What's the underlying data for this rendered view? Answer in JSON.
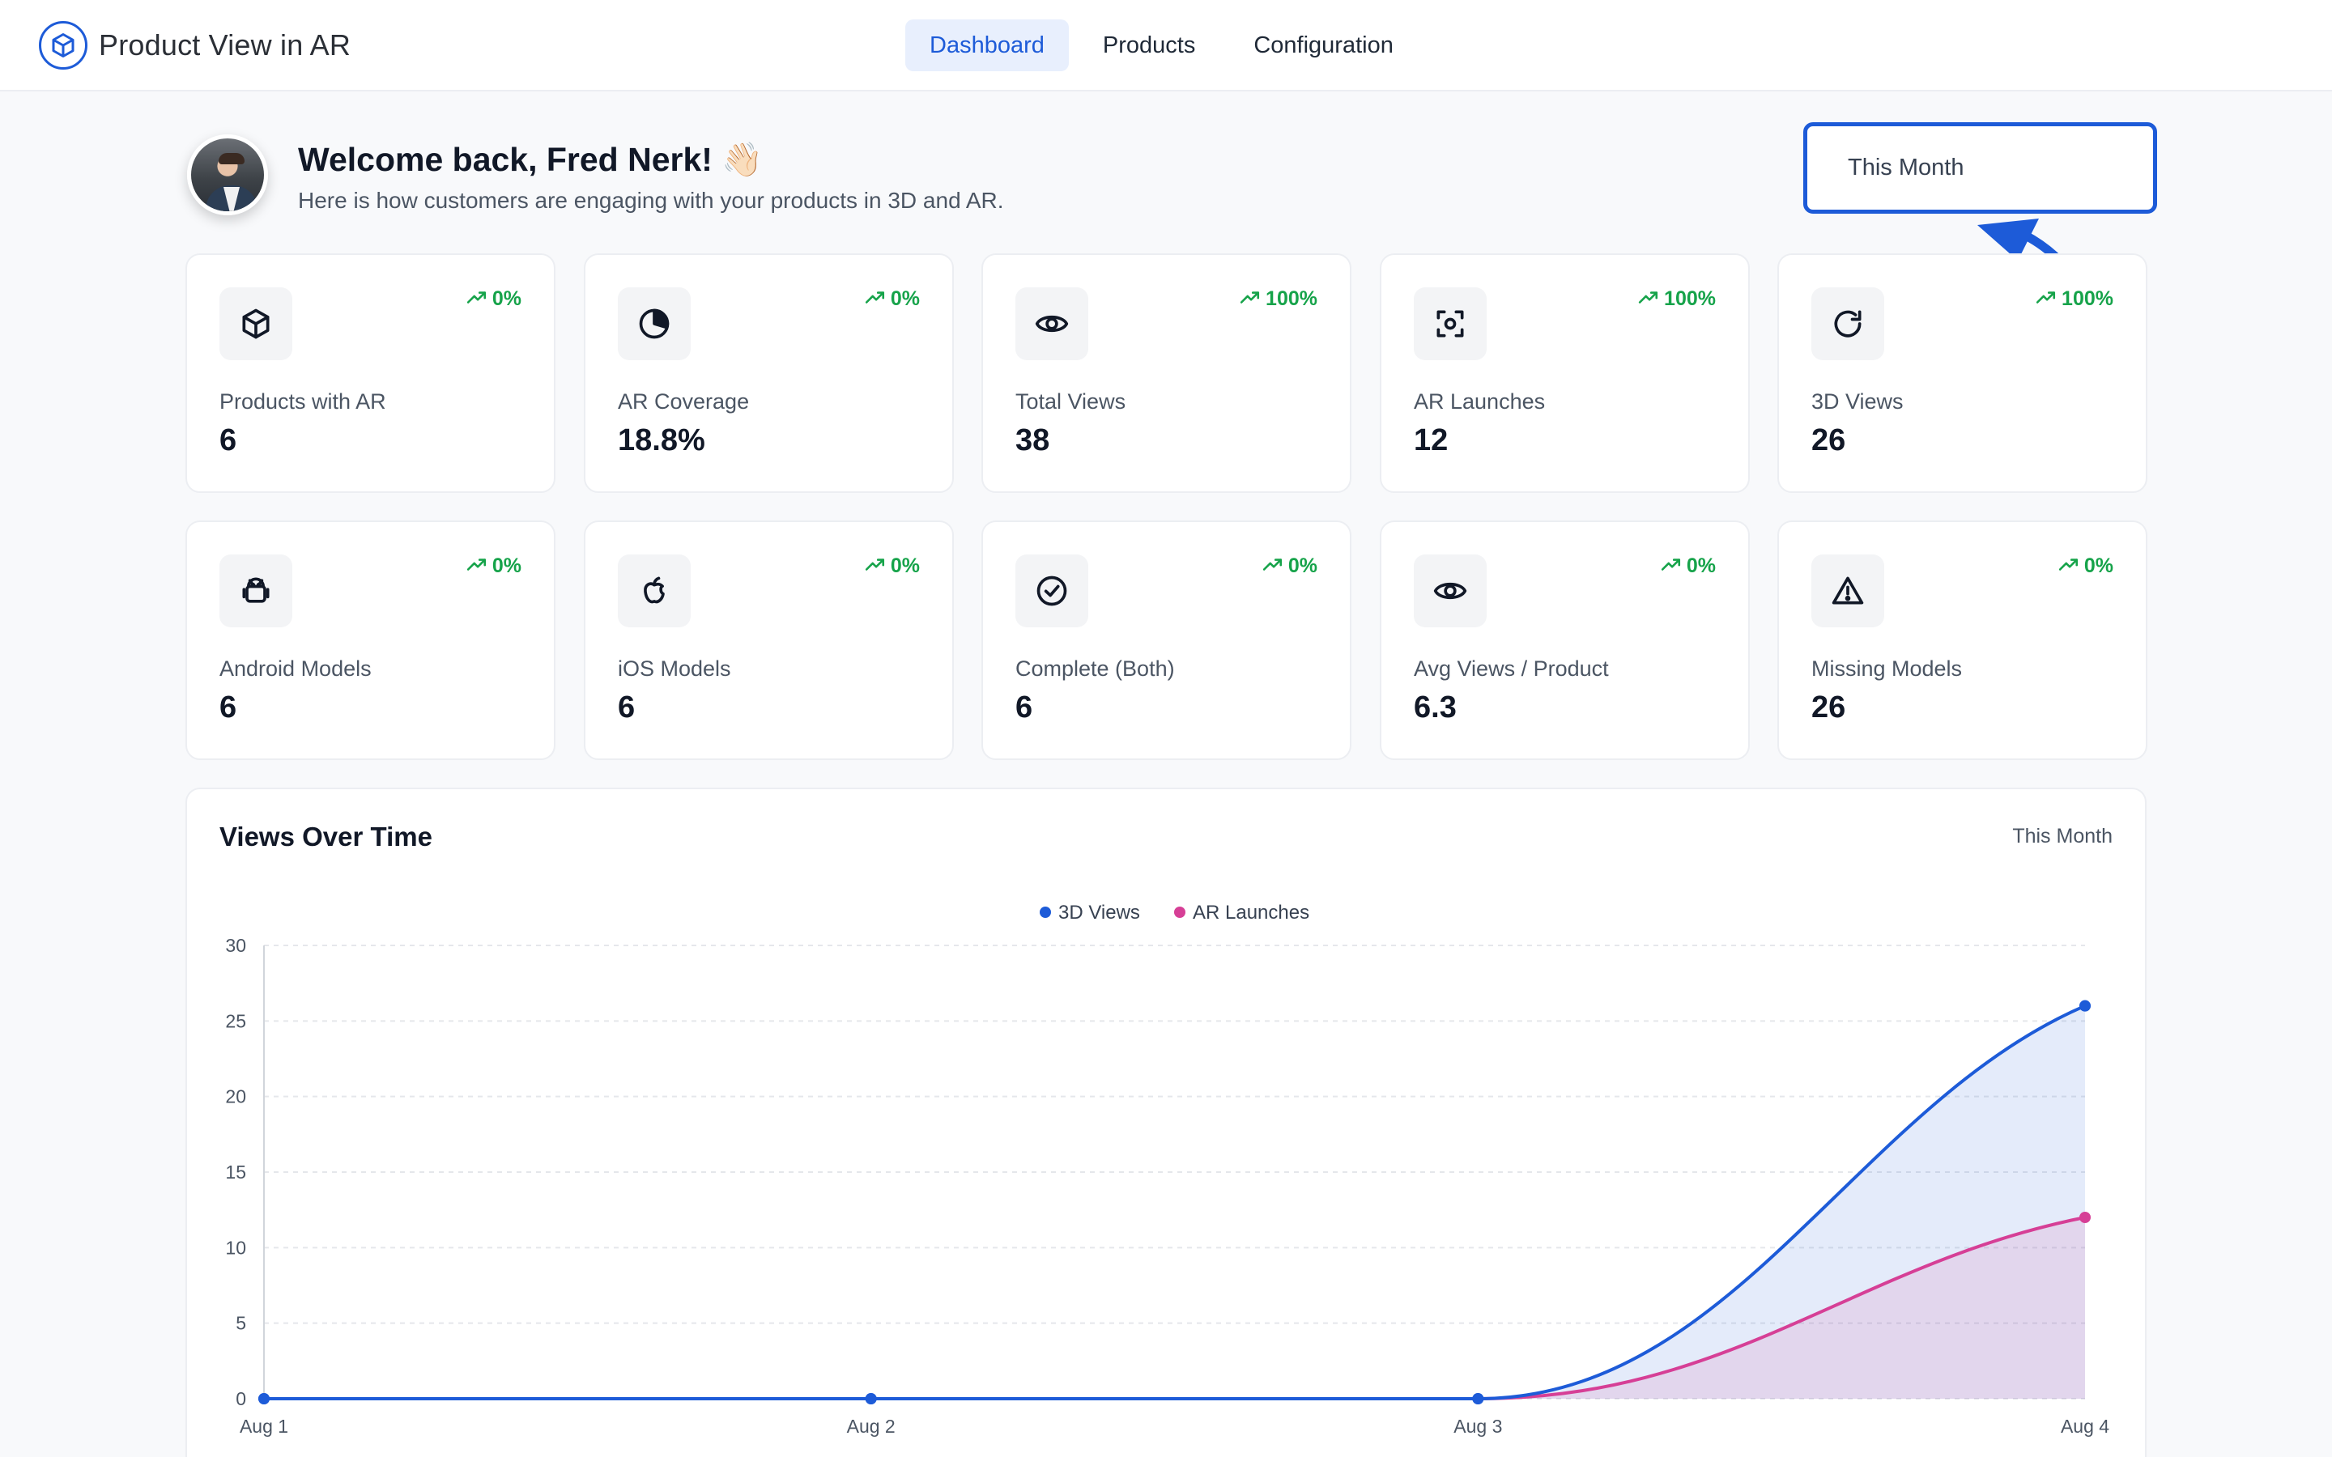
{
  "app": {
    "title": "Product View in AR"
  },
  "nav": [
    {
      "label": "Dashboard",
      "active": true
    },
    {
      "label": "Products",
      "active": false
    },
    {
      "label": "Configuration",
      "active": false
    }
  ],
  "welcome": {
    "title": "Welcome back, Fred Nerk! 👋🏻",
    "subtitle": "Here is how customers are engaging with your products in 3D and AR."
  },
  "range_select": {
    "value": "This Month"
  },
  "stats": [
    {
      "label": "Products with AR",
      "value": "6",
      "trend": "0%",
      "icon": "cube-icon"
    },
    {
      "label": "AR Coverage",
      "value": "18.8%",
      "trend": "0%",
      "icon": "pie-chart-icon"
    },
    {
      "label": "Total Views",
      "value": "38",
      "trend": "100%",
      "icon": "eye-icon"
    },
    {
      "label": "AR Launches",
      "value": "12",
      "trend": "100%",
      "icon": "scan-icon"
    },
    {
      "label": "3D Views",
      "value": "26",
      "trend": "100%",
      "icon": "rotate-icon"
    },
    {
      "label": "Android Models",
      "value": "6",
      "trend": "0%",
      "icon": "android-icon"
    },
    {
      "label": "iOS Models",
      "value": "6",
      "trend": "0%",
      "icon": "apple-icon"
    },
    {
      "label": "Complete (Both)",
      "value": "6",
      "trend": "0%",
      "icon": "check-circle-icon"
    },
    {
      "label": "Avg Views / Product",
      "value": "6.3",
      "trend": "0%",
      "icon": "eye-icon"
    },
    {
      "label": "Missing Models",
      "value": "26",
      "trend": "0%",
      "icon": "warning-icon"
    }
  ],
  "colors": {
    "accent": "#1d5bd8",
    "trend_up": "#16a34a",
    "series_3d": "#1d5bd8",
    "series_ar": "#d63f96"
  },
  "chart_data": {
    "type": "area",
    "title": "Views Over Time",
    "range_label": "This Month",
    "categories": [
      "Aug 1",
      "Aug 2",
      "Aug 3",
      "Aug 4"
    ],
    "series": [
      {
        "name": "3D Views",
        "values": [
          0,
          0,
          0,
          26
        ],
        "color": "#1d5bd8"
      },
      {
        "name": "AR Launches",
        "values": [
          0,
          0,
          0,
          12
        ],
        "color": "#d63f96"
      }
    ],
    "ylim": [
      0,
      30
    ],
    "yticks": [
      0,
      5,
      10,
      15,
      20,
      25,
      30
    ],
    "grid": true,
    "legend": "top-center"
  }
}
